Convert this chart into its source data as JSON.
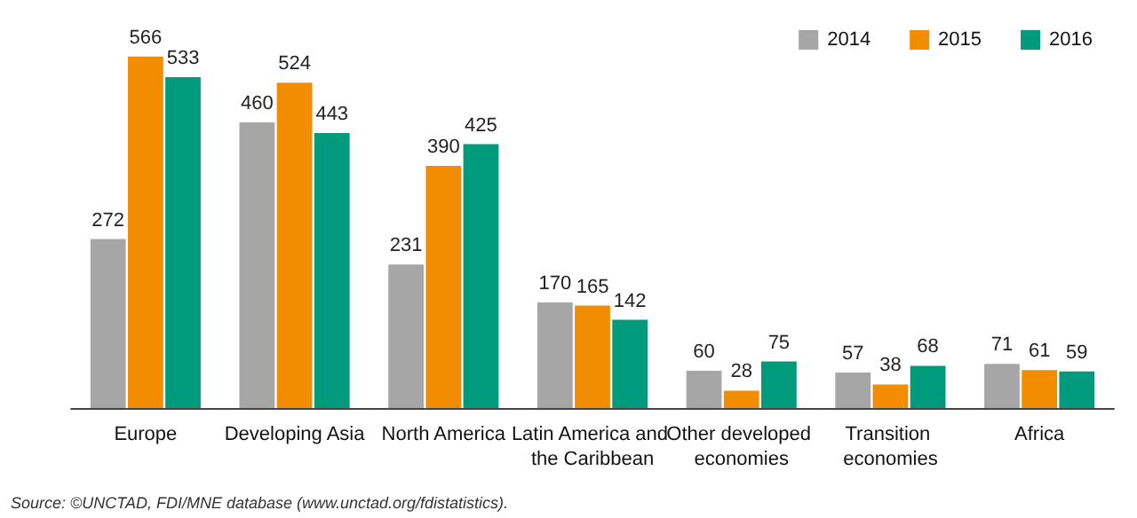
{
  "chart_data": {
    "type": "bar",
    "categories": [
      "Europe",
      "Developing Asia",
      "North America",
      "Latin America and the Caribbean",
      "Other developed economies",
      "Transition economies",
      "Africa"
    ],
    "series": [
      {
        "name": "2014",
        "color": "#a6a6a6",
        "values": [
          272,
          460,
          231,
          170,
          60,
          57,
          71
        ]
      },
      {
        "name": "2015",
        "color": "#f28c00",
        "values": [
          566,
          524,
          390,
          165,
          28,
          38,
          61
        ]
      },
      {
        "name": "2016",
        "color": "#009a7c",
        "values": [
          533,
          443,
          425,
          142,
          75,
          68,
          59
        ]
      }
    ],
    "data_labels": true,
    "legend": "top right",
    "annotations": [
      "Source: ©UNCTAD, FDI/MNE database (www.unctad.org/fdistatistics)."
    ]
  }
}
